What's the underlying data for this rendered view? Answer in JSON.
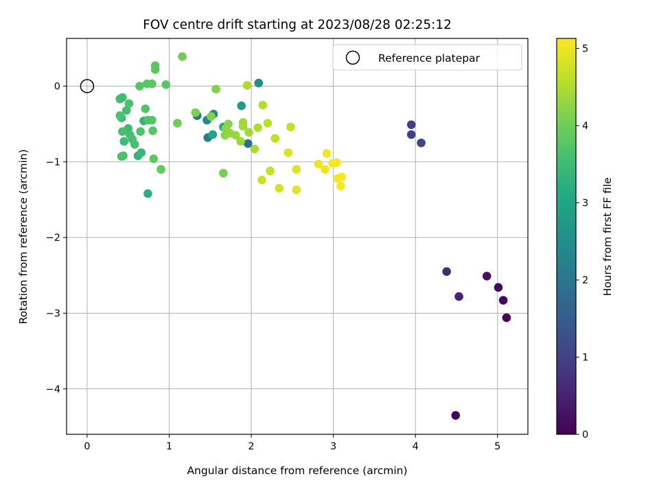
{
  "chart_data": {
    "type": "scatter",
    "title": "FOV centre drift starting at 2023/08/28 02:25:12",
    "xlabel": "Angular distance from reference (arcmin)",
    "ylabel": "Rotation from reference (arcmin)",
    "colorbar_label": "Hours from first FF file",
    "xlim": [
      -0.25,
      5.37
    ],
    "ylim": [
      -4.6,
      0.63
    ],
    "clim": [
      0,
      5.13
    ],
    "x_ticks": [
      0,
      1,
      2,
      3,
      4,
      5
    ],
    "y_ticks": [
      0,
      -1,
      -2,
      -3,
      -4
    ],
    "colorbar_ticks": [
      0,
      1,
      2,
      3,
      4,
      5
    ],
    "grid": true,
    "colormap": "viridis",
    "legend": {
      "placement": "top-right",
      "label": "Reference platepar"
    },
    "reference_point": {
      "x": 0,
      "y": 0
    },
    "points": [
      {
        "x": 4.49,
        "y": -4.35,
        "t": 0.05
      },
      {
        "x": 5.11,
        "y": -3.06,
        "t": 0.08
      },
      {
        "x": 5.07,
        "y": -2.83,
        "t": 0.12
      },
      {
        "x": 5.01,
        "y": -2.66,
        "t": 0.15
      },
      {
        "x": 4.87,
        "y": -2.51,
        "t": 0.2
      },
      {
        "x": 4.53,
        "y": -2.78,
        "t": 0.5
      },
      {
        "x": 4.38,
        "y": -2.45,
        "t": 0.6
      },
      {
        "x": 3.95,
        "y": -0.51,
        "t": 0.95
      },
      {
        "x": 3.95,
        "y": -0.64,
        "t": 1.0
      },
      {
        "x": 4.07,
        "y": -0.75,
        "t": 1.05
      },
      {
        "x": 1.96,
        "y": -0.76,
        "t": 1.8
      },
      {
        "x": 1.34,
        "y": -0.39,
        "t": 2.0
      },
      {
        "x": 1.47,
        "y": -0.68,
        "t": 2.2
      },
      {
        "x": 1.54,
        "y": -0.37,
        "t": 2.3
      },
      {
        "x": 1.46,
        "y": -0.45,
        "t": 2.4
      },
      {
        "x": 2.09,
        "y": 0.04,
        "t": 2.5
      },
      {
        "x": 1.88,
        "y": -0.26,
        "t": 2.8
      },
      {
        "x": 1.53,
        "y": -0.64,
        "t": 3.0
      },
      {
        "x": 1.66,
        "y": -0.54,
        "t": 3.1
      },
      {
        "x": 0.74,
        "y": -1.42,
        "t": 3.25
      },
      {
        "x": 0.69,
        "y": -0.46,
        "t": 3.3
      },
      {
        "x": 0.62,
        "y": -0.92,
        "t": 3.35
      },
      {
        "x": 0.66,
        "y": -0.88,
        "t": 3.4
      },
      {
        "x": 0.5,
        "y": -0.56,
        "t": 3.45
      },
      {
        "x": 0.45,
        "y": -0.73,
        "t": 3.5
      },
      {
        "x": 0.42,
        "y": -0.42,
        "t": 3.5
      },
      {
        "x": 0.43,
        "y": -0.15,
        "t": 3.55
      },
      {
        "x": 0.4,
        "y": -0.17,
        "t": 3.55
      },
      {
        "x": 0.48,
        "y": -0.32,
        "t": 3.55
      },
      {
        "x": 0.58,
        "y": -0.77,
        "t": 3.6
      },
      {
        "x": 0.52,
        "y": -0.64,
        "t": 3.6
      },
      {
        "x": 0.55,
        "y": -0.7,
        "t": 3.62
      },
      {
        "x": 0.43,
        "y": -0.6,
        "t": 3.62
      },
      {
        "x": 0.4,
        "y": -0.39,
        "t": 3.65
      },
      {
        "x": 0.42,
        "y": -0.93,
        "t": 3.65
      },
      {
        "x": 0.44,
        "y": -0.92,
        "t": 3.65
      },
      {
        "x": 0.51,
        "y": -0.23,
        "t": 3.68
      },
      {
        "x": 0.65,
        "y": -0.6,
        "t": 3.7
      },
      {
        "x": 0.74,
        "y": -0.45,
        "t": 3.7
      },
      {
        "x": 0.79,
        "y": -0.45,
        "t": 3.72
      },
      {
        "x": 0.71,
        "y": -0.3,
        "t": 3.72
      },
      {
        "x": 0.8,
        "y": -0.59,
        "t": 3.75
      },
      {
        "x": 0.64,
        "y": 0.0,
        "t": 3.75
      },
      {
        "x": 0.73,
        "y": 0.03,
        "t": 3.75
      },
      {
        "x": 0.79,
        "y": 0.03,
        "t": 3.78
      },
      {
        "x": 0.83,
        "y": 0.22,
        "t": 3.8
      },
      {
        "x": 0.83,
        "y": 0.27,
        "t": 3.8
      },
      {
        "x": 0.96,
        "y": 0.02,
        "t": 3.8
      },
      {
        "x": 0.81,
        "y": -0.96,
        "t": 3.85
      },
      {
        "x": 0.9,
        "y": -1.1,
        "t": 3.9
      },
      {
        "x": 1.16,
        "y": 0.39,
        "t": 4.0
      },
      {
        "x": 1.1,
        "y": -0.49,
        "t": 4.0
      },
      {
        "x": 1.66,
        "y": -1.15,
        "t": 4.05
      },
      {
        "x": 1.32,
        "y": -0.35,
        "t": 4.1
      },
      {
        "x": 1.51,
        "y": -0.4,
        "t": 4.15
      },
      {
        "x": 1.57,
        "y": -0.04,
        "t": 4.15
      },
      {
        "x": 1.72,
        "y": -0.5,
        "t": 4.2
      },
      {
        "x": 1.69,
        "y": -0.56,
        "t": 4.25
      },
      {
        "x": 1.68,
        "y": -0.65,
        "t": 4.25
      },
      {
        "x": 1.74,
        "y": -0.62,
        "t": 4.3
      },
      {
        "x": 1.81,
        "y": -0.65,
        "t": 4.32
      },
      {
        "x": 1.87,
        "y": -0.73,
        "t": 4.35
      },
      {
        "x": 1.9,
        "y": -0.48,
        "t": 4.38
      },
      {
        "x": 1.9,
        "y": -0.53,
        "t": 4.4
      },
      {
        "x": 1.97,
        "y": -0.61,
        "t": 4.4
      },
      {
        "x": 2.04,
        "y": -0.83,
        "t": 4.45
      },
      {
        "x": 2.08,
        "y": -0.55,
        "t": 4.5
      },
      {
        "x": 1.95,
        "y": 0.01,
        "t": 4.5
      },
      {
        "x": 2.14,
        "y": -0.25,
        "t": 4.55
      },
      {
        "x": 2.2,
        "y": -0.49,
        "t": 4.6
      },
      {
        "x": 2.29,
        "y": -0.69,
        "t": 4.65
      },
      {
        "x": 2.48,
        "y": -0.54,
        "t": 4.65
      },
      {
        "x": 2.23,
        "y": -1.12,
        "t": 4.7
      },
      {
        "x": 2.13,
        "y": -1.24,
        "t": 4.75
      },
      {
        "x": 2.34,
        "y": -1.35,
        "t": 4.8
      },
      {
        "x": 2.45,
        "y": -0.88,
        "t": 4.85
      },
      {
        "x": 2.55,
        "y": -1.1,
        "t": 4.9
      },
      {
        "x": 2.55,
        "y": -1.37,
        "t": 4.92
      },
      {
        "x": 2.82,
        "y": -1.03,
        "t": 5.0
      },
      {
        "x": 2.9,
        "y": -1.1,
        "t": 5.02
      },
      {
        "x": 2.92,
        "y": -0.89,
        "t": 5.05
      },
      {
        "x": 2.99,
        "y": -1.02,
        "t": 5.06
      },
      {
        "x": 3.04,
        "y": -1.01,
        "t": 5.08
      },
      {
        "x": 3.05,
        "y": -1.22,
        "t": 5.1
      },
      {
        "x": 3.09,
        "y": -1.32,
        "t": 5.12
      },
      {
        "x": 3.1,
        "y": -1.2,
        "t": 5.13
      }
    ]
  }
}
